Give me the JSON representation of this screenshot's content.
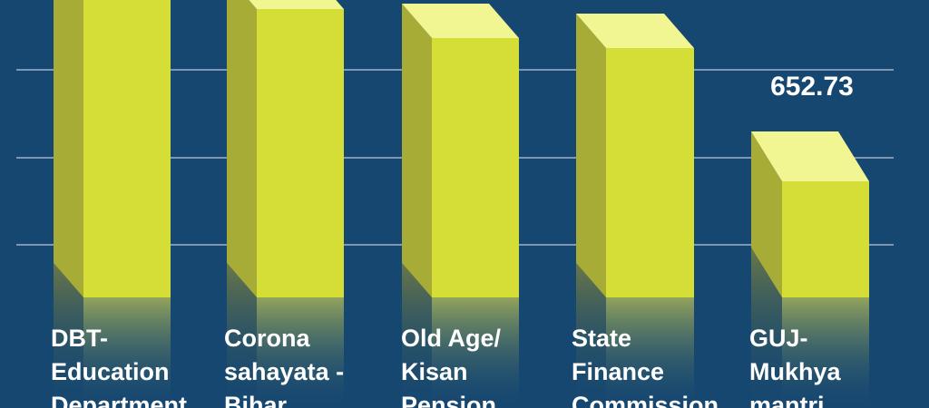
{
  "chart_data": {
    "type": "bar",
    "title": "",
    "xlabel": "",
    "ylabel": "",
    "categories": [
      [
        "DBT-",
        "Education",
        "Department"
      ],
      [
        "Corona",
        "sahayata -",
        "Bihar"
      ],
      [
        "Old Age/",
        "Kisan",
        "Pension"
      ],
      [
        "State",
        "Finance",
        "Commission"
      ],
      [
        "GUJ-",
        "Mukhya",
        "mantri"
      ]
    ],
    "values": [
      null,
      null,
      null,
      null,
      652.73
    ],
    "value_labels": [
      "",
      "",
      "",
      "",
      "652.73"
    ],
    "grid": true,
    "colors": {
      "background": "#164770",
      "bar_front": "#d4de37",
      "bar_side": "#a7ac37",
      "bar_top": "#f2f692",
      "grid": "#9fb3c8",
      "text": "#ffffff"
    }
  }
}
